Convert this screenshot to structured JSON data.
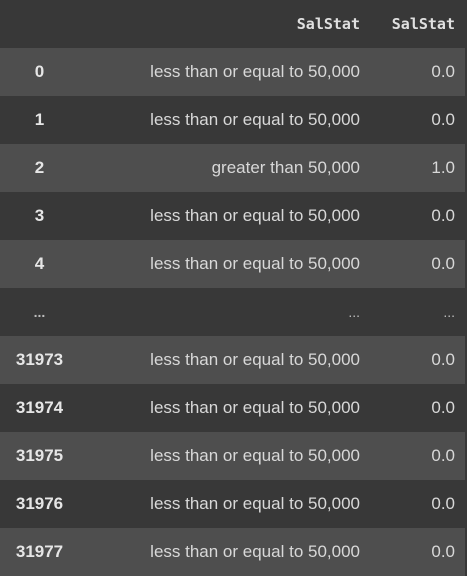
{
  "dataframe": {
    "index_header": "",
    "columns": [
      "SalStat",
      "SalStat"
    ],
    "rows": [
      {
        "index": "0",
        "c0": "less than or equal to 50,000",
        "c1": "0.0"
      },
      {
        "index": "1",
        "c0": "less than or equal to 50,000",
        "c1": "0.0"
      },
      {
        "index": "2",
        "c0": "greater than 50,000",
        "c1": "1.0"
      },
      {
        "index": "3",
        "c0": "less than or equal to 50,000",
        "c1": "0.0"
      },
      {
        "index": "4",
        "c0": "less than or equal to 50,000",
        "c1": "0.0"
      },
      {
        "index": "...",
        "c0": "...",
        "c1": "..."
      },
      {
        "index": "31973",
        "c0": "less than or equal to 50,000",
        "c1": "0.0"
      },
      {
        "index": "31974",
        "c0": "less than or equal to 50,000",
        "c1": "0.0"
      },
      {
        "index": "31975",
        "c0": "less than or equal to 50,000",
        "c1": "0.0"
      },
      {
        "index": "31976",
        "c0": "less than or equal to 50,000",
        "c1": "0.0"
      },
      {
        "index": "31977",
        "c0": "less than or equal to 50,000",
        "c1": "0.0"
      }
    ]
  }
}
